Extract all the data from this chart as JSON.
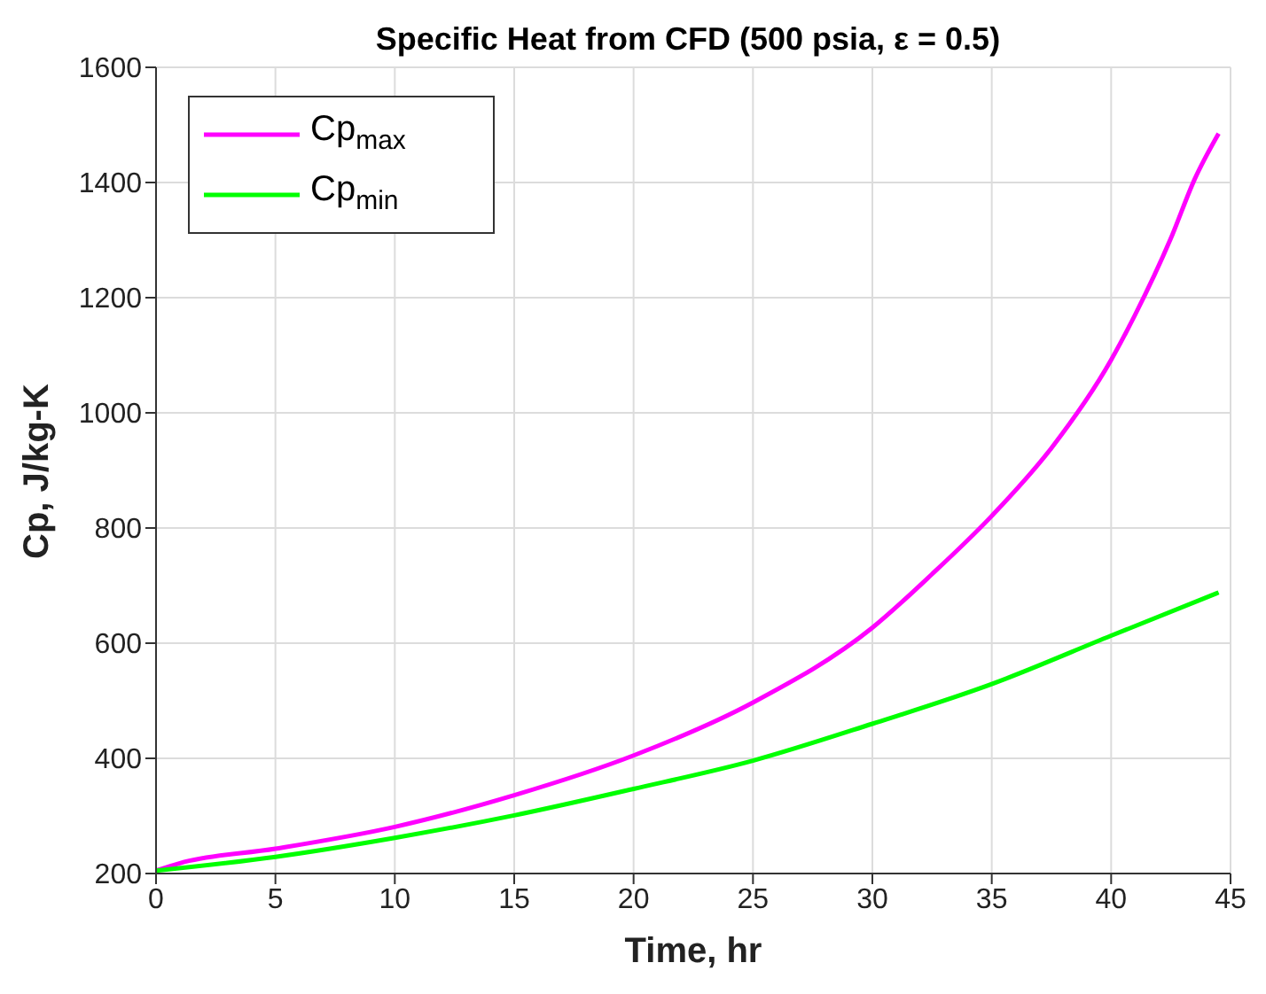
{
  "chart_data": {
    "type": "line",
    "title": "Specific Heat from CFD (500 psia, ε = 0.5)",
    "xlabel": "Time, hr",
    "ylabel": "Cp, J/kg-K",
    "xlim": [
      0,
      45
    ],
    "ylim": [
      200,
      1600
    ],
    "xticks": [
      0,
      5,
      10,
      15,
      20,
      25,
      30,
      35,
      40,
      45
    ],
    "yticks": [
      200,
      400,
      600,
      800,
      1000,
      1200,
      1400,
      1600
    ],
    "grid": true,
    "legend": "top left",
    "marker": "none",
    "line_style": "solid",
    "series": [
      {
        "name": "Cp$_{max}$",
        "color": "#ff00ff",
        "x": [
          0,
          1,
          5,
          10,
          15,
          20,
          25,
          30,
          32.5,
          35,
          37.5,
          40,
          41,
          42.5,
          43.5,
          44.5
        ],
        "values": [
          205,
          218,
          243,
          281,
          336,
          405,
          497,
          627,
          720,
          821,
          939,
          1092,
          1170,
          1303,
          1406,
          1485
        ]
      },
      {
        "name": "Cp$_{min}$",
        "color": "#00ff00",
        "x": [
          0,
          5,
          10,
          15,
          20,
          25,
          30,
          35,
          40,
          44.5
        ],
        "values": [
          205,
          229,
          262,
          301,
          347,
          396,
          460,
          529,
          613,
          688
        ]
      }
    ]
  }
}
